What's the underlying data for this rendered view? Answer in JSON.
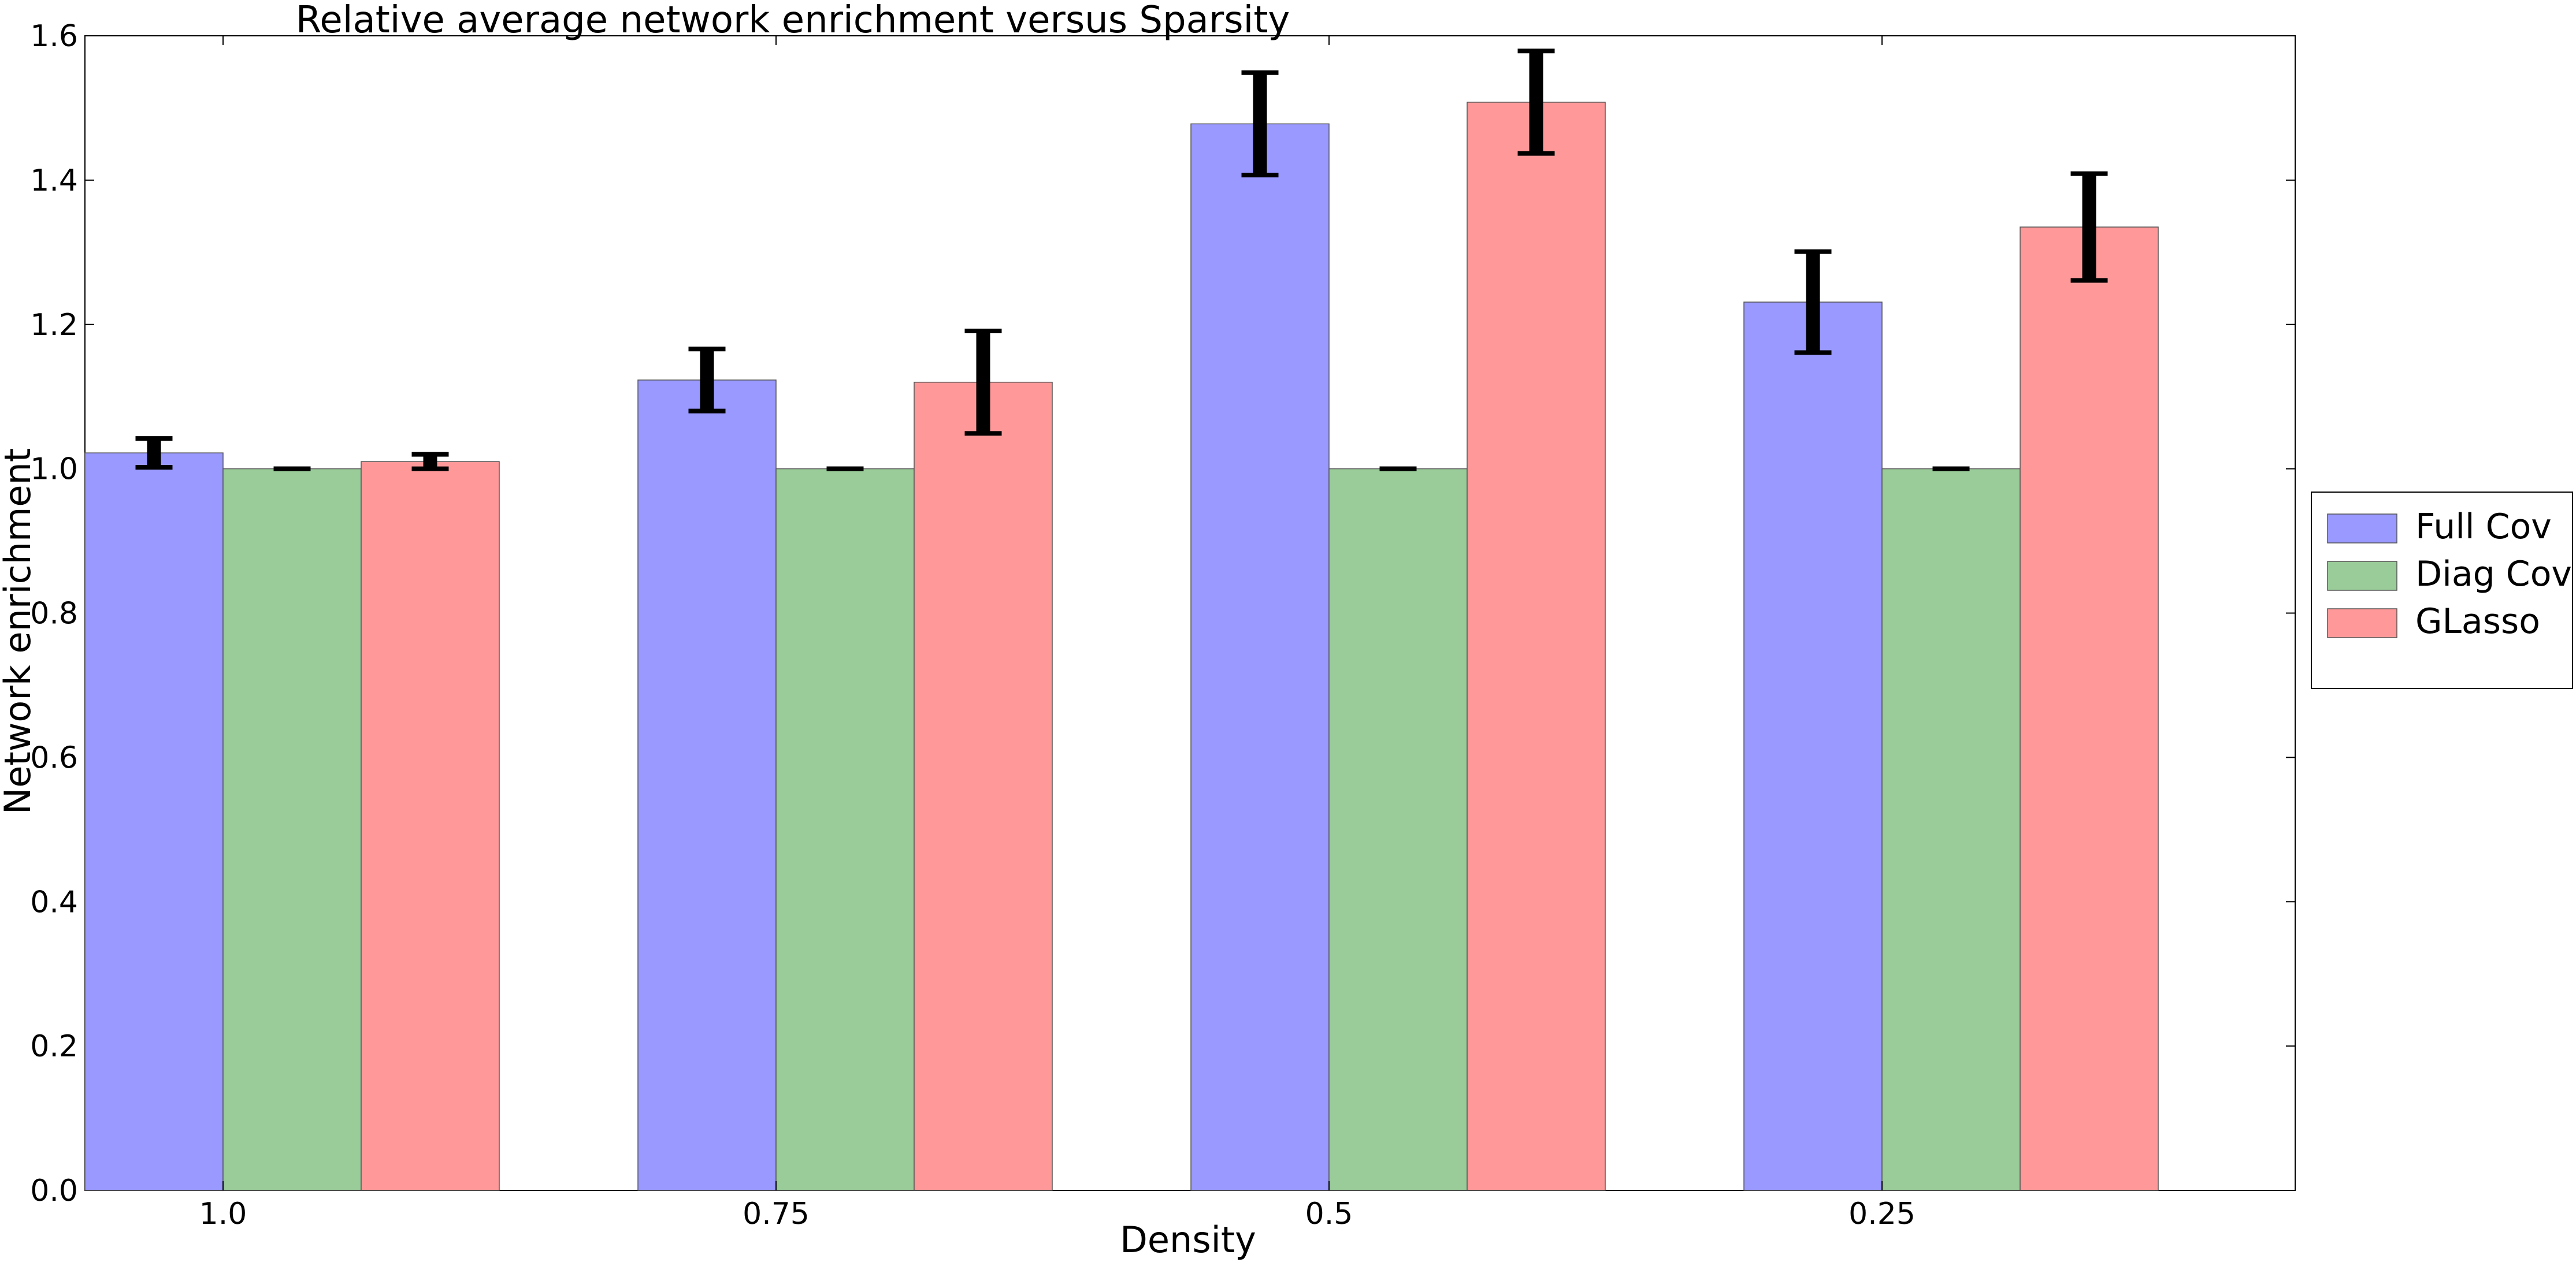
{
  "chart_data": {
    "type": "bar",
    "title": "Relative average network enrichment versus Sparsity",
    "xlabel": "Density",
    "ylabel": "Network enrichment",
    "categories": [
      "1.0",
      "0.75",
      "0.5",
      "0.25"
    ],
    "ylim": [
      0.0,
      1.6
    ],
    "yticks": [
      "0.0",
      "0.2",
      "0.4",
      "0.6",
      "0.8",
      "1.0",
      "1.2",
      "1.4",
      "1.6"
    ],
    "grid": false,
    "legend_position": "right",
    "series": [
      {
        "name": "Full Cov",
        "color": "#9999ff",
        "values": [
          1.022,
          1.123,
          1.478,
          1.231
        ],
        "errors": [
          0.02,
          0.043,
          0.071,
          0.07
        ]
      },
      {
        "name": "Diag Cov",
        "color": "#99cc99",
        "values": [
          1.0,
          1.0,
          1.0,
          1.0
        ],
        "errors": [
          0.0,
          0.0,
          0.0,
          0.0
        ]
      },
      {
        "name": "GLasso",
        "color": "#ff9999",
        "values": [
          1.01,
          1.12,
          1.508,
          1.335
        ],
        "errors": [
          0.01,
          0.071,
          0.071,
          0.074
        ]
      }
    ]
  }
}
